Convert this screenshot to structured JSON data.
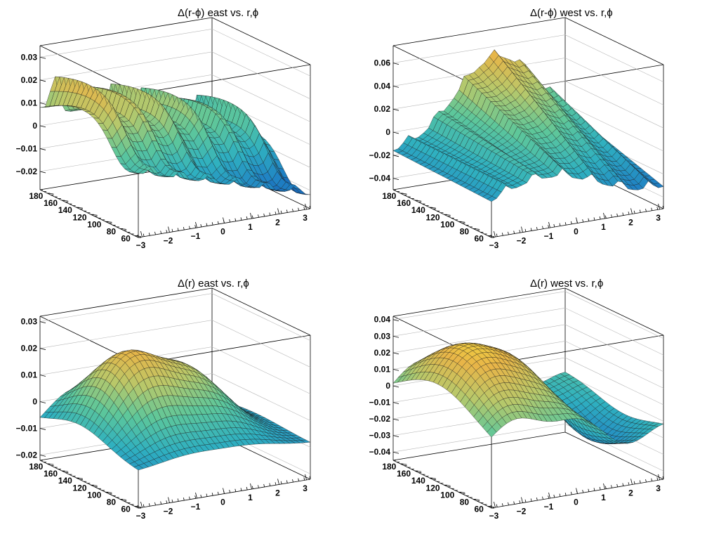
{
  "chart_data": [
    {
      "type": "surface",
      "title": "Δ(r-ϕ) east vs. r,ϕ",
      "x_ticks": [
        "−3",
        "−2",
        "−1",
        "0",
        "1",
        "2",
        "3"
      ],
      "x_values": [
        -3,
        -2,
        -1,
        0,
        1,
        2,
        3
      ],
      "xlim": [
        -3.14,
        3.14
      ],
      "y_ticks": [
        "60",
        "80",
        "100",
        "120",
        "140",
        "160",
        "180"
      ],
      "y_values": [
        60,
        80,
        100,
        120,
        140,
        160,
        180
      ],
      "ylim": [
        55,
        190
      ],
      "z_ticks": [
        "−0.02",
        "−0.01",
        "0",
        "0.01",
        "0.02",
        "0.03"
      ],
      "z_values": [
        -0.02,
        -0.01,
        0,
        0.01,
        0.02,
        0.03
      ],
      "zlim": [
        -0.028,
        0.035
      ],
      "palette": [
        "#0c3d9e",
        "#1f80c4",
        "#2fb0c0",
        "#5ec79a",
        "#b8c86a",
        "#e8b548",
        "#f5e338"
      ]
    },
    {
      "type": "surface",
      "title": "Δ(r-ϕ) west vs. r,ϕ",
      "x_ticks": [
        "−3",
        "−2",
        "−1",
        "0",
        "1",
        "2",
        "3"
      ],
      "x_values": [
        -3,
        -2,
        -1,
        0,
        1,
        2,
        3
      ],
      "xlim": [
        -3.14,
        3.14
      ],
      "y_ticks": [
        "60",
        "80",
        "100",
        "120",
        "140",
        "160",
        "180"
      ],
      "y_values": [
        60,
        80,
        100,
        120,
        140,
        160,
        180
      ],
      "ylim": [
        55,
        190
      ],
      "z_ticks": [
        "−0.04",
        "−0.02",
        "0",
        "0.02",
        "0.04",
        "0.06"
      ],
      "z_values": [
        -0.04,
        -0.02,
        0,
        0.02,
        0.04,
        0.06
      ],
      "zlim": [
        -0.05,
        0.075
      ],
      "palette": [
        "#0c3d9e",
        "#1f80c4",
        "#2fb0c0",
        "#5ec79a",
        "#b8c86a",
        "#e8b548",
        "#f5e338"
      ]
    },
    {
      "type": "surface",
      "title": "Δ(r) east vs. r,ϕ",
      "x_ticks": [
        "−3",
        "−2",
        "−1",
        "0",
        "1",
        "2",
        "3"
      ],
      "x_values": [
        -3,
        -2,
        -1,
        0,
        1,
        2,
        3
      ],
      "xlim": [
        -3.14,
        3.14
      ],
      "y_ticks": [
        "60",
        "80",
        "100",
        "120",
        "140",
        "160",
        "180"
      ],
      "y_values": [
        60,
        80,
        100,
        120,
        140,
        160,
        180
      ],
      "ylim": [
        55,
        190
      ],
      "z_ticks": [
        "−0.02",
        "−0.01",
        "0",
        "0.01",
        "0.02",
        "0.03"
      ],
      "z_values": [
        -0.02,
        -0.01,
        0,
        0.01,
        0.02,
        0.03
      ],
      "zlim": [
        -0.022,
        0.032
      ],
      "palette": [
        "#0c3d9e",
        "#1f80c4",
        "#2fb0c0",
        "#5ec79a",
        "#b8c86a",
        "#e8b548",
        "#f5e338"
      ]
    },
    {
      "type": "surface",
      "title": "Δ(r) west vs. r,ϕ",
      "x_ticks": [
        "−3",
        "−2",
        "−1",
        "0",
        "1",
        "2",
        "3"
      ],
      "x_values": [
        -3,
        -2,
        -1,
        0,
        1,
        2,
        3
      ],
      "xlim": [
        -3.14,
        3.14
      ],
      "y_ticks": [
        "60",
        "80",
        "100",
        "120",
        "140",
        "160",
        "180"
      ],
      "y_values": [
        60,
        80,
        100,
        120,
        140,
        160,
        180
      ],
      "ylim": [
        55,
        190
      ],
      "z_ticks": [
        "−0.04",
        "−0.03",
        "−0.02",
        "−0.01",
        "0",
        "0.01",
        "0.02",
        "0.03",
        "0.04"
      ],
      "z_values": [
        -0.04,
        -0.03,
        -0.02,
        -0.01,
        0,
        0.01,
        0.02,
        0.03,
        0.04
      ],
      "zlim": [
        -0.045,
        0.042
      ],
      "palette": [
        "#0c3d9e",
        "#1f80c4",
        "#2fb0c0",
        "#5ec79a",
        "#b8c86a",
        "#e8b548",
        "#f5e338"
      ]
    }
  ]
}
